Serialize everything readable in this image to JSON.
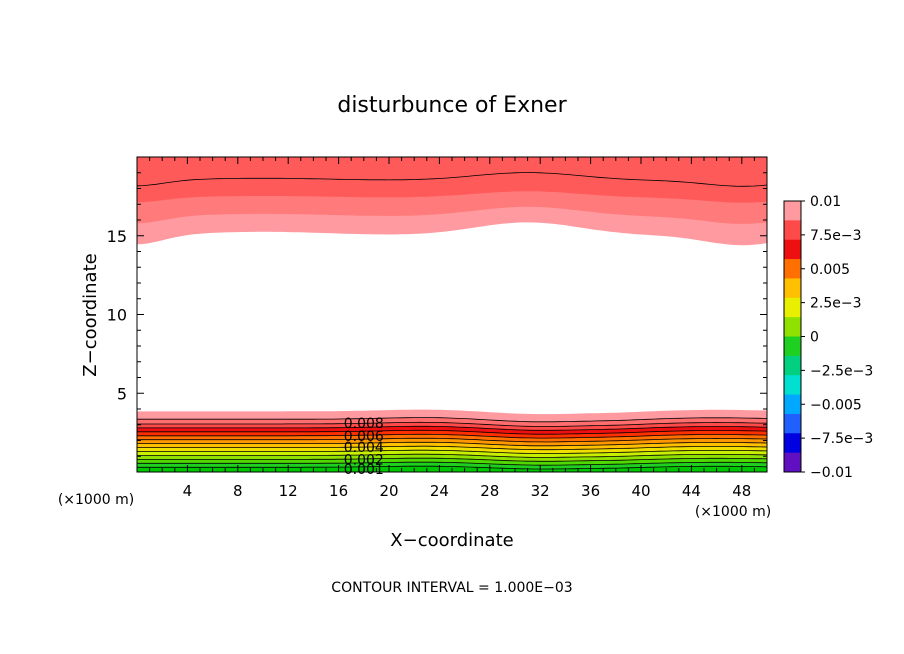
{
  "chart_data": {
    "type": "contour",
    "title": "disturbunce of Exner",
    "xlabel": "X−coordinate",
    "ylabel": "Z−coordinate",
    "x_unit_left": "(×1000 m)",
    "x_unit_right": "(×1000 m)",
    "footer": "CONTOUR INTERVAL = 1.000E−03",
    "xlim": [
      0,
      50
    ],
    "ylim": [
      0,
      20
    ],
    "x_ticks": [
      4,
      8,
      12,
      16,
      20,
      24,
      28,
      32,
      36,
      40,
      44,
      48
    ],
    "x_tick_labels": [
      "4",
      "8",
      "12",
      "16",
      "20",
      "24",
      "28",
      "32",
      "36",
      "40",
      "44",
      "48"
    ],
    "y_ticks": [
      5,
      10,
      15
    ],
    "y_tick_labels": [
      "5",
      "10",
      "15"
    ],
    "contour_labels": [
      {
        "text": "0.008",
        "x": 18.0,
        "y": 3.1
      },
      {
        "text": "0.006",
        "x": 18.0,
        "y": 2.3
      },
      {
        "text": "0.004",
        "x": 18.0,
        "y": 1.6
      },
      {
        "text": "0.002",
        "x": 18.0,
        "y": 0.8
      },
      {
        "text": "0.001",
        "x": 18.0,
        "y": 0.2
      }
    ],
    "colorbar": {
      "range": [
        -0.01,
        0.01
      ],
      "tick_labels": [
        "0.01",
        "7.5e−3",
        "0.005",
        "2.5e−3",
        "0",
        "−2.5e−3",
        "−0.005",
        "−7.5e−3",
        "−0.01"
      ],
      "colors": [
        "#ff9aa0",
        "#ff4a4a",
        "#ee1010",
        "#ff7000",
        "#ffc000",
        "#e8f000",
        "#90e000",
        "#20d020",
        "#00d080",
        "#00e0d0",
        "#00a8ff",
        "#2060ff",
        "#0000e0",
        "#6010c0"
      ]
    },
    "bands": {
      "bottom_top_heights": [
        3.85,
        3.35,
        3.05,
        2.8,
        2.55,
        2.3,
        2.05,
        1.8,
        1.55,
        1.3,
        1.05,
        0.8,
        0.55,
        0.3
      ],
      "bottom_colors": [
        "#ff9aa0",
        "#ff6e6e",
        "#ff4a4a",
        "#ee1010",
        "#ff3000",
        "#ff7000",
        "#ff9800",
        "#ffc000",
        "#f0e000",
        "#c8f000",
        "#90e000",
        "#50d800",
        "#20d020",
        "#00c800"
      ],
      "top_colors": [
        "#ff9aa0",
        "#ff7a7a",
        "#ff5a5a"
      ],
      "top_base_heights": [
        15.0,
        16.2,
        17.4
      ]
    }
  }
}
